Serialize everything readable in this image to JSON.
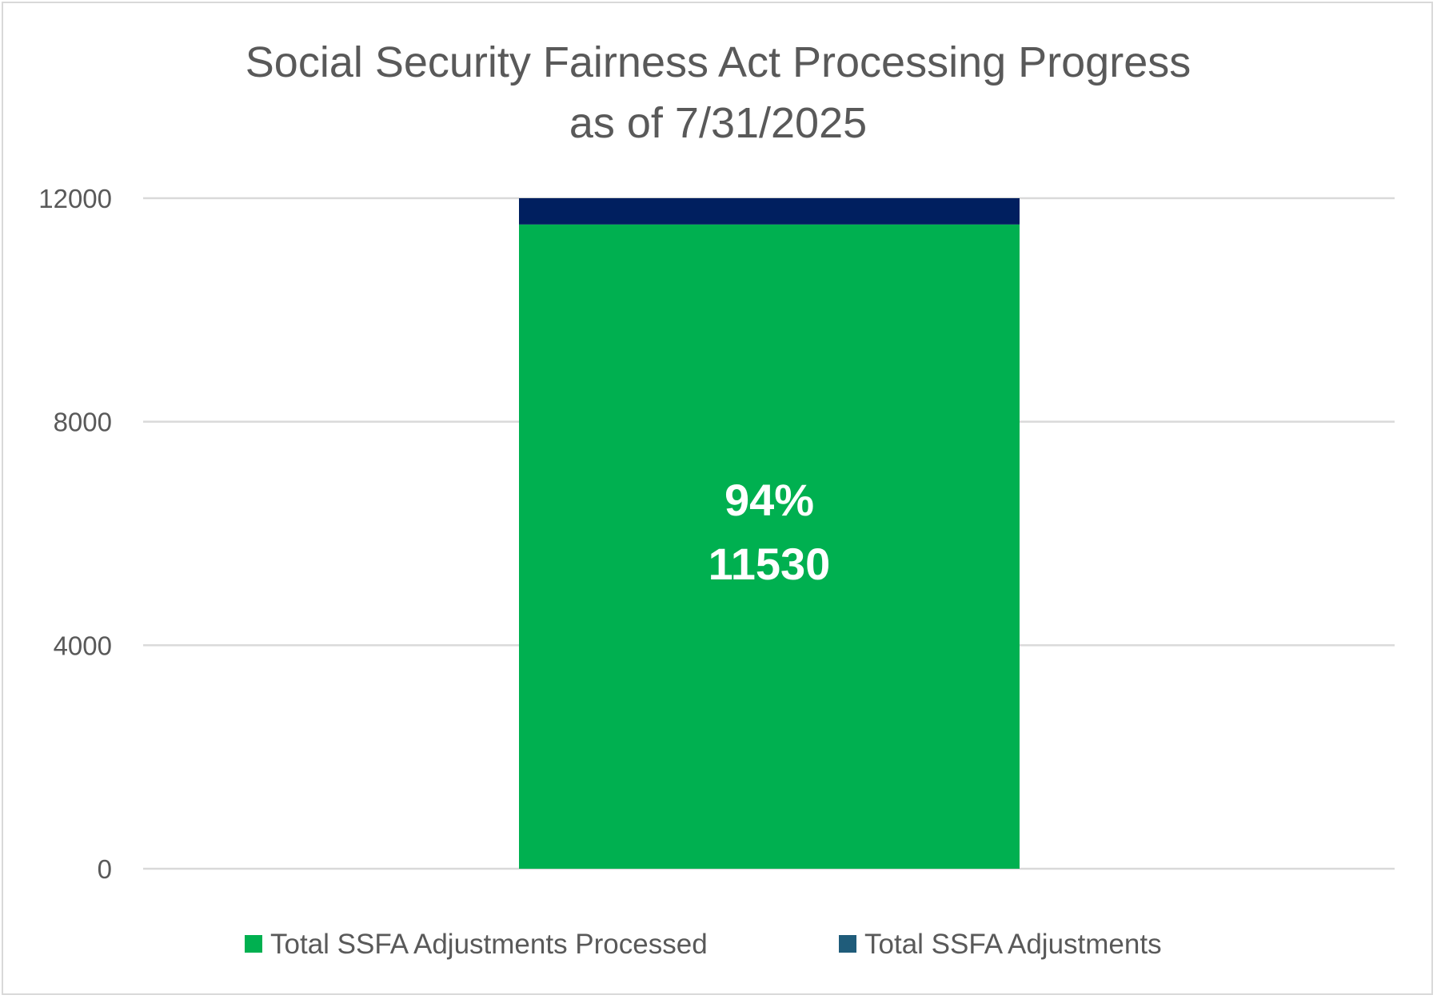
{
  "chart_data": {
    "type": "bar",
    "stacked": true,
    "title_lines": [
      "Social Security Fairness Act Processing Progress",
      "as of 7/31/2025"
    ],
    "categories": [
      ""
    ],
    "ylim": [
      0,
      12000
    ],
    "yticks": [
      0,
      4000,
      8000,
      12000
    ],
    "grid": true,
    "legend_position": "bottom",
    "series": [
      {
        "name": "Total SSFA Adjustments Processed",
        "values": [
          11530
        ],
        "color": "#00b050",
        "data_label_lines": [
          "94%",
          "11530"
        ]
      },
      {
        "name": "Total SSFA Adjustments",
        "values": [
          470
        ],
        "color": "#001f5f",
        "legend_color": "#1f5c7a"
      }
    ]
  }
}
